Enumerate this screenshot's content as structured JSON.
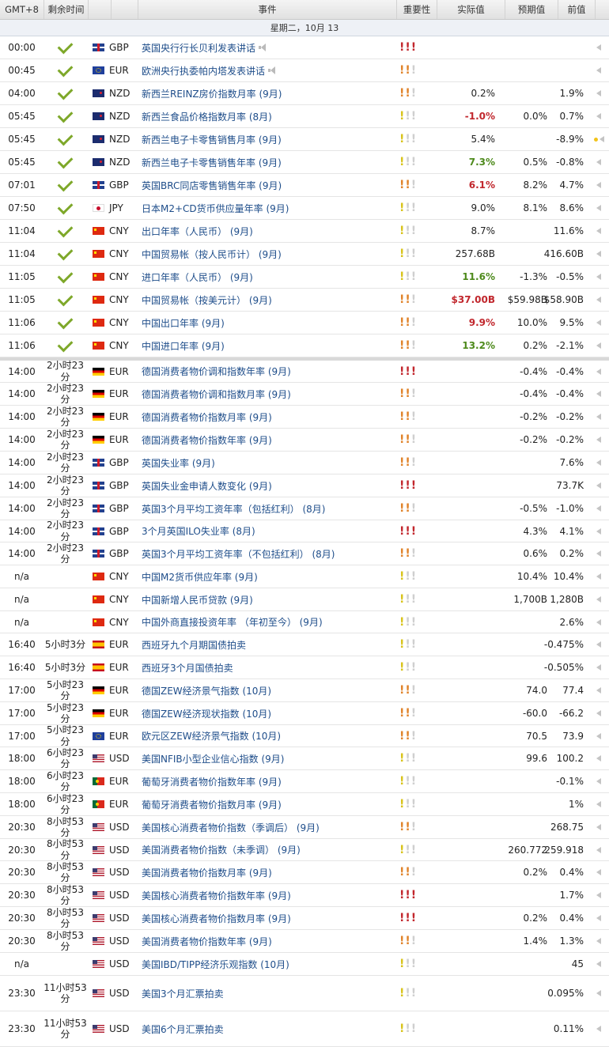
{
  "header": {
    "timezone": "GMT+8",
    "remaining": "剩余时间",
    "event": "事件",
    "importance": "重要性",
    "actual": "实际值",
    "forecast": "预期值",
    "previous": "前值"
  },
  "day_label": "星期二，10月 13",
  "colors": {
    "red": "#c1272d",
    "green": "#4e8a1c",
    "high": "#c2272d",
    "medium": "#e0832a",
    "low": "#d8c31b"
  },
  "rows": [
    {
      "time": "00:00",
      "rem": "",
      "done": true,
      "flag": "gb",
      "cur": "GBP",
      "event": "英国央行行长贝利发表讲话",
      "speech": true,
      "imp": 3,
      "actual": "",
      "astyle": "",
      "forecast": "",
      "previous": "",
      "h": 28
    },
    {
      "time": "00:45",
      "rem": "",
      "done": true,
      "flag": "eu",
      "cur": "EUR",
      "event": "欧洲央行执委帕内塔发表讲话",
      "speech": true,
      "imp": 2,
      "actual": "",
      "astyle": "",
      "forecast": "",
      "previous": "",
      "h": 28
    },
    {
      "time": "04:00",
      "rem": "",
      "done": true,
      "flag": "nz",
      "cur": "NZD",
      "event": "新西兰REINZ房价指数月率 (9月)",
      "imp": 2,
      "actual": "0.2%",
      "astyle": "",
      "forecast": "",
      "previous": "1.9%",
      "h": 28
    },
    {
      "time": "05:45",
      "rem": "",
      "done": true,
      "flag": "nz",
      "cur": "NZD",
      "event": "新西兰食品价格指数月率 (8月)",
      "imp": 1,
      "actual": "-1.0%",
      "astyle": "red",
      "forecast": "0.0%",
      "previous": "0.7%",
      "h": 28
    },
    {
      "time": "05:45",
      "rem": "",
      "done": true,
      "flag": "nz",
      "cur": "NZD",
      "event": "新西兰电子卡零售销售月率 (9月)",
      "imp": 1,
      "actual": "5.4%",
      "astyle": "",
      "forecast": "",
      "previous": "-8.9%",
      "dot": true,
      "h": 28
    },
    {
      "time": "05:45",
      "rem": "",
      "done": true,
      "flag": "nz",
      "cur": "NZD",
      "event": "新西兰电子卡零售销售年率 (9月)",
      "imp": 1,
      "actual": "7.3%",
      "astyle": "green",
      "forecast": "0.5%",
      "previous": "-0.8%",
      "h": 28
    },
    {
      "time": "07:01",
      "rem": "",
      "done": true,
      "flag": "gb",
      "cur": "GBP",
      "event": "英国BRC同店零售销售年率 (9月)",
      "imp": 2,
      "actual": "6.1%",
      "astyle": "red",
      "forecast": "8.2%",
      "previous": "4.7%",
      "h": 28
    },
    {
      "time": "07:50",
      "rem": "",
      "done": true,
      "flag": "jp",
      "cur": "JPY",
      "event": "日本M2+CD货币供应量年率 (9月)",
      "imp": 1,
      "actual": "9.0%",
      "astyle": "",
      "forecast": "8.1%",
      "previous": "8.6%",
      "h": 28
    },
    {
      "time": "11:04",
      "rem": "",
      "done": true,
      "flag": "cn",
      "cur": "CNY",
      "event": "出口年率（人民币） (9月)",
      "imp": 1,
      "actual": "8.7%",
      "astyle": "",
      "forecast": "",
      "previous": "11.6%",
      "h": 28
    },
    {
      "time": "11:04",
      "rem": "",
      "done": true,
      "flag": "cn",
      "cur": "CNY",
      "event": "中国贸易帐（按人民币计） (9月)",
      "imp": 1,
      "actual": "257.68B",
      "astyle": "",
      "forecast": "",
      "previous": "416.60B",
      "h": 28
    },
    {
      "time": "11:05",
      "rem": "",
      "done": true,
      "flag": "cn",
      "cur": "CNY",
      "event": "进口年率（人民币） (9月)",
      "imp": 1,
      "actual": "11.6%",
      "astyle": "green",
      "forecast": "-1.3%",
      "previous": "-0.5%",
      "h": 28
    },
    {
      "time": "11:05",
      "rem": "",
      "done": true,
      "flag": "cn",
      "cur": "CNY",
      "event": "中国贸易帐（按美元计） (9月)",
      "imp": 2,
      "actual": "$37.00B",
      "astyle": "red",
      "forecast": "$59.98B",
      "previous": "$58.90B",
      "h": 28
    },
    {
      "time": "11:06",
      "rem": "",
      "done": true,
      "flag": "cn",
      "cur": "CNY",
      "event": "中国出口年率 (9月)",
      "imp": 2,
      "actual": "9.9%",
      "astyle": "red",
      "forecast": "10.0%",
      "previous": "9.5%",
      "h": 28
    },
    {
      "time": "11:06",
      "rem": "",
      "done": true,
      "flag": "cn",
      "cur": "CNY",
      "event": "中国进口年率 (9月)",
      "imp": 2,
      "actual": "13.2%",
      "astyle": "green",
      "forecast": "0.2%",
      "previous": "-2.1%",
      "h": 28,
      "sep_after": true
    },
    {
      "time": "14:00",
      "rem": "2小时23分",
      "flag": "de",
      "cur": "EUR",
      "event": "德国消费者物价调和指数年率 (9月)",
      "imp": 3,
      "actual": "",
      "astyle": "",
      "forecast": "-0.4%",
      "previous": "-0.4%",
      "h": 27
    },
    {
      "time": "14:00",
      "rem": "2小时23分",
      "flag": "de",
      "cur": "EUR",
      "event": "德国消费者物价调和指数月率 (9月)",
      "imp": 2,
      "actual": "",
      "astyle": "",
      "forecast": "-0.4%",
      "previous": "-0.4%",
      "h": 28
    },
    {
      "time": "14:00",
      "rem": "2小时23分",
      "flag": "de",
      "cur": "EUR",
      "event": "德国消费者物价指数月率 (9月)",
      "imp": 2,
      "actual": "",
      "astyle": "",
      "forecast": "-0.2%",
      "previous": "-0.2%",
      "h": 28
    },
    {
      "time": "14:00",
      "rem": "2小时23分",
      "flag": "de",
      "cur": "EUR",
      "event": "德国消费者物价指数年率 (9月)",
      "imp": 2,
      "actual": "",
      "astyle": "",
      "forecast": "-0.2%",
      "previous": "-0.2%",
      "h": 28
    },
    {
      "time": "14:00",
      "rem": "2小时23分",
      "flag": "gb",
      "cur": "GBP",
      "event": "英国失业率 (9月)",
      "imp": 2,
      "actual": "",
      "astyle": "",
      "forecast": "",
      "previous": "7.6%",
      "h": 28
    },
    {
      "time": "14:00",
      "rem": "2小时23分",
      "flag": "gb",
      "cur": "GBP",
      "event": "英国失业金申请人数变化 (9月)",
      "imp": 3,
      "actual": "",
      "astyle": "",
      "forecast": "",
      "previous": "73.7K",
      "h": 28
    },
    {
      "time": "14:00",
      "rem": "2小时23分",
      "flag": "gb",
      "cur": "GBP",
      "event": "英国3个月平均工资年率（包括红利） (8月)",
      "imp": 2,
      "actual": "",
      "astyle": "",
      "forecast": "-0.5%",
      "previous": "-1.0%",
      "h": 28
    },
    {
      "time": "14:00",
      "rem": "2小时23分",
      "flag": "gb",
      "cur": "GBP",
      "event": "3个月英国ILO失业率 (8月)",
      "imp": 3,
      "actual": "",
      "astyle": "",
      "forecast": "4.3%",
      "previous": "4.1%",
      "h": 27
    },
    {
      "time": "14:00",
      "rem": "2小时23分",
      "flag": "gb",
      "cur": "GBP",
      "event": "英国3个月平均工资年率（不包括红利） (8月)",
      "imp": 2,
      "actual": "",
      "astyle": "",
      "forecast": "0.6%",
      "previous": "0.2%",
      "h": 28
    },
    {
      "time": "n/a",
      "rem": "",
      "flag": "cn",
      "cur": "CNY",
      "event": "中国M2货币供应年率 (9月)",
      "imp": 1,
      "actual": "",
      "astyle": "",
      "forecast": "10.4%",
      "previous": "10.4%",
      "h": 28
    },
    {
      "time": "n/a",
      "rem": "",
      "flag": "cn",
      "cur": "CNY",
      "event": "中国新增人民币贷款 (9月)",
      "imp": 1,
      "actual": "",
      "astyle": "",
      "forecast": "1,700B",
      "previous": "1,280B",
      "h": 28
    },
    {
      "time": "n/a",
      "rem": "",
      "flag": "cn",
      "cur": "CNY",
      "event": "中国外商直接投资年率 （年初至今） (9月)",
      "imp": 1,
      "actual": "",
      "astyle": "",
      "forecast": "",
      "previous": "2.6%",
      "h": 27
    },
    {
      "time": "16:40",
      "rem": "5小时3分",
      "flag": "es",
      "cur": "EUR",
      "event": "西班牙九个月期国债拍卖",
      "imp": 1,
      "actual": "",
      "astyle": "",
      "forecast": "",
      "previous": "-0.475%",
      "h": 28
    },
    {
      "time": "16:40",
      "rem": "5小时3分",
      "flag": "es",
      "cur": "EUR",
      "event": "西班牙3个月国债拍卖",
      "imp": 1,
      "actual": "",
      "astyle": "",
      "forecast": "",
      "previous": "-0.505%",
      "h": 28
    },
    {
      "time": "17:00",
      "rem": "5小时23分",
      "flag": "de",
      "cur": "EUR",
      "event": "德国ZEW经济景气指数 (10月)",
      "imp": 2,
      "actual": "",
      "astyle": "",
      "forecast": "74.0",
      "previous": "77.4",
      "h": 28
    },
    {
      "time": "17:00",
      "rem": "5小时23分",
      "flag": "de",
      "cur": "EUR",
      "event": "德国ZEW经济现状指数 (10月)",
      "imp": 2,
      "actual": "",
      "astyle": "",
      "forecast": "-60.0",
      "previous": "-66.2",
      "h": 28
    },
    {
      "time": "17:00",
      "rem": "5小时23分",
      "flag": "eu",
      "cur": "EUR",
      "event": "欧元区ZEW经济景气指数 (10月)",
      "imp": 2,
      "actual": "",
      "astyle": "",
      "forecast": "70.5",
      "previous": "73.9",
      "h": 27
    },
    {
      "time": "18:00",
      "rem": "6小时23分",
      "flag": "us",
      "cur": "USD",
      "event": "美国NFIB小型企业信心指数 (9月)",
      "imp": 1,
      "actual": "",
      "astyle": "",
      "forecast": "99.6",
      "previous": "100.2",
      "h": 28
    },
    {
      "time": "18:00",
      "rem": "6小时23分",
      "flag": "pt",
      "cur": "EUR",
      "event": "葡萄牙消费者物价指数年率 (9月)",
      "imp": 1,
      "actual": "",
      "astyle": "",
      "forecast": "",
      "previous": "-0.1%",
      "h": 28
    },
    {
      "time": "18:00",
      "rem": "6小时23分",
      "flag": "pt",
      "cur": "EUR",
      "event": "葡萄牙消费者物价指数月率 (9月)",
      "imp": 1,
      "actual": "",
      "astyle": "",
      "forecast": "",
      "previous": "1%",
      "h": 28
    },
    {
      "time": "20:30",
      "rem": "8小时53分",
      "flag": "us",
      "cur": "USD",
      "event": "美国核心消费者物价指数（季调后） (9月)",
      "imp": 2,
      "actual": "",
      "astyle": "",
      "forecast": "",
      "previous": "268.75",
      "h": 28
    },
    {
      "time": "20:30",
      "rem": "8小时53分",
      "flag": "us",
      "cur": "USD",
      "event": "美国消费者物价指数（未季调） (9月)",
      "imp": 1,
      "actual": "",
      "astyle": "",
      "forecast": "260.772",
      "previous": "259.918",
      "h": 27
    },
    {
      "time": "20:30",
      "rem": "8小时53分",
      "flag": "us",
      "cur": "USD",
      "event": "美国消费者物价指数月率 (9月)",
      "imp": 2,
      "actual": "",
      "astyle": "",
      "forecast": "0.2%",
      "previous": "0.4%",
      "h": 28
    },
    {
      "time": "20:30",
      "rem": "8小时53分",
      "flag": "us",
      "cur": "USD",
      "event": "美国核心消费者物价指数年率 (9月)",
      "imp": 3,
      "actual": "",
      "astyle": "",
      "forecast": "",
      "previous": "1.7%",
      "h": 28
    },
    {
      "time": "20:30",
      "rem": "8小时53分",
      "flag": "us",
      "cur": "USD",
      "event": "美国核心消费者物价指数月率 (9月)",
      "imp": 3,
      "actual": "",
      "astyle": "",
      "forecast": "0.2%",
      "previous": "0.4%",
      "h": 28
    },
    {
      "time": "20:30",
      "rem": "8小时53分",
      "flag": "us",
      "cur": "USD",
      "event": "美国消费者物价指数年率 (9月)",
      "imp": 2,
      "actual": "",
      "astyle": "",
      "forecast": "1.4%",
      "previous": "1.3%",
      "h": 28
    },
    {
      "time": "n/a",
      "rem": "",
      "flag": "us",
      "cur": "USD",
      "event": "美国IBD/TIPP经济乐观指数 (10月)",
      "imp": 1,
      "actual": "",
      "astyle": "",
      "forecast": "",
      "previous": "45",
      "h": 28
    },
    {
      "time": "23:30",
      "rem": "11小时53分",
      "flag": "us",
      "cur": "USD",
      "event": "美国3个月汇票拍卖",
      "imp": 1,
      "actual": "",
      "astyle": "",
      "forecast": "",
      "previous": "0.095%",
      "h": 44
    },
    {
      "time": "23:30",
      "rem": "11小时53分",
      "flag": "us",
      "cur": "USD",
      "event": "美国6个月汇票拍卖",
      "imp": 1,
      "actual": "",
      "astyle": "",
      "forecast": "",
      "previous": "0.11%",
      "h": 44
    }
  ]
}
